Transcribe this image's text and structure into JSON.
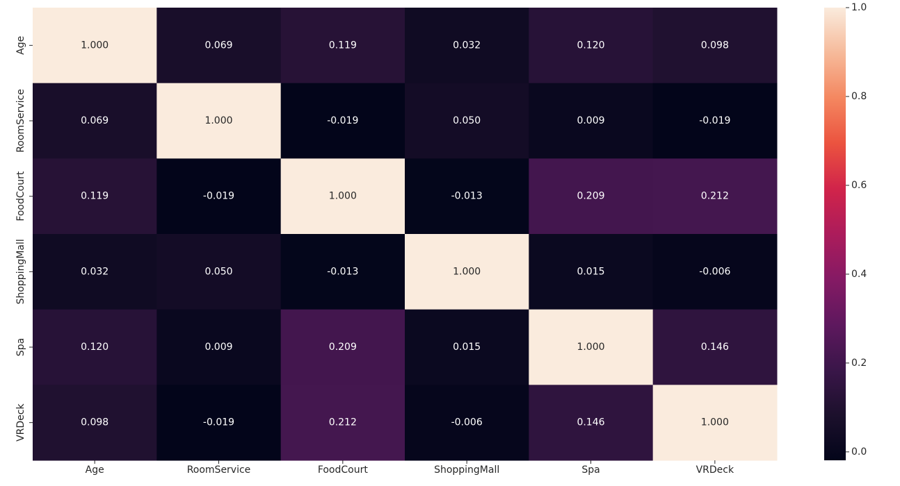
{
  "chart_data": {
    "type": "heatmap",
    "title": "",
    "xlabel": "",
    "ylabel": "",
    "x_categories": [
      "Age",
      "RoomService",
      "FoodCourt",
      "ShoppingMall",
      "Spa",
      "VRDeck"
    ],
    "y_categories": [
      "Age",
      "RoomService",
      "FoodCourt",
      "ShoppingMall",
      "Spa",
      "VRDeck"
    ],
    "values": [
      [
        1.0,
        0.069,
        0.119,
        0.032,
        0.12,
        0.098
      ],
      [
        0.069,
        1.0,
        -0.019,
        0.05,
        0.009,
        -0.019
      ],
      [
        0.119,
        -0.019,
        1.0,
        -0.013,
        0.209,
        0.212
      ],
      [
        0.032,
        0.05,
        -0.013,
        1.0,
        0.015,
        -0.006
      ],
      [
        0.12,
        0.009,
        0.209,
        0.015,
        1.0,
        0.146
      ],
      [
        0.098,
        -0.019,
        0.212,
        -0.006,
        0.146,
        1.0
      ]
    ],
    "annotation_labels": [
      [
        "1.000",
        "0.069",
        "0.119",
        "0.032",
        "0.120",
        "0.098"
      ],
      [
        "0.069",
        "1.000",
        "-0.019",
        "0.050",
        "0.009",
        "-0.019"
      ],
      [
        "0.119",
        "-0.019",
        "1.000",
        "-0.013",
        "0.209",
        "0.212"
      ],
      [
        "0.032",
        "0.050",
        "-0.013",
        "1.000",
        "0.015",
        "-0.006"
      ],
      [
        "0.120",
        "0.009",
        "0.209",
        "0.015",
        "1.000",
        "0.146"
      ],
      [
        "0.098",
        "-0.019",
        "0.212",
        "-0.006",
        "0.146",
        "1.000"
      ]
    ],
    "colorbar": {
      "min": -0.019,
      "max": 1.0,
      "ticks": [
        0.0,
        0.2,
        0.4,
        0.6,
        0.8,
        1.0
      ],
      "tick_labels": [
        "0.0",
        "0.2",
        "0.4",
        "0.6",
        "0.8",
        "1.0"
      ],
      "colormap": "rocket"
    },
    "annotation_colors": {
      "on_dark": "#ffffff",
      "on_light": "#262626"
    },
    "tick_color": "#262626",
    "grid": false
  }
}
